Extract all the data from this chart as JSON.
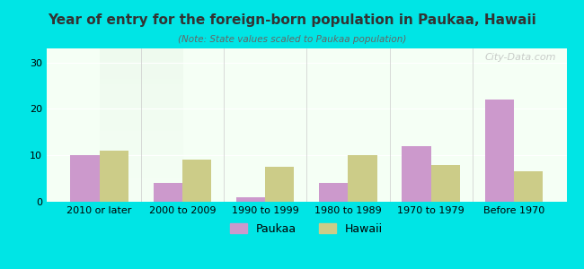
{
  "title": "Year of entry for the foreign-born population in Paukaa, Hawaii",
  "subtitle": "(Note: State values scaled to Paukaa population)",
  "categories": [
    "2010 or later",
    "2000 to 2009",
    "1990 to 1999",
    "1980 to 1989",
    "1970 to 1979",
    "Before 1970"
  ],
  "paukaa_values": [
    10,
    4,
    1,
    4,
    12,
    22
  ],
  "hawaii_values": [
    11,
    9,
    7.5,
    10,
    8,
    6.5
  ],
  "paukaa_color": "#cc99cc",
  "hawaii_color": "#cccc88",
  "background_color": "#00e5e5",
  "plot_bg_gradient_top": "#e8f5e8",
  "plot_bg_gradient_bottom": "#f5fff5",
  "ylim": [
    0,
    33
  ],
  "yticks": [
    0,
    10,
    20,
    30
  ],
  "bar_width": 0.35,
  "legend_labels": [
    "Paukaa",
    "Hawaii"
  ],
  "watermark": "City-Data.com"
}
